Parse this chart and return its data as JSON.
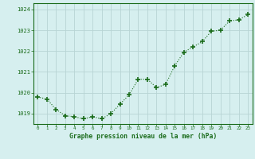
{
  "x": [
    0,
    1,
    2,
    3,
    4,
    5,
    6,
    7,
    8,
    9,
    10,
    11,
    12,
    13,
    14,
    15,
    16,
    17,
    18,
    19,
    20,
    21,
    22,
    23
  ],
  "y": [
    1019.8,
    1019.7,
    1019.2,
    1018.9,
    1018.85,
    1018.75,
    1018.85,
    1018.75,
    1019.0,
    1019.45,
    1019.9,
    1020.65,
    1020.65,
    1020.25,
    1020.4,
    1021.3,
    1021.95,
    1022.2,
    1022.45,
    1022.95,
    1023.0,
    1023.45,
    1023.5,
    1023.75
  ],
  "line_color": "#1a6b1a",
  "marker_color": "#1a6b1a",
  "bg_color": "#d6efef",
  "grid_color": "#b8d4d4",
  "xlabel": "Graphe pression niveau de la mer (hPa)",
  "xlabel_color": "#1a6b1a",
  "tick_color": "#1a6b1a",
  "ylim": [
    1018.5,
    1024.3
  ],
  "yticks": [
    1019,
    1020,
    1021,
    1022,
    1023,
    1024
  ],
  "xticks": [
    0,
    1,
    2,
    3,
    4,
    5,
    6,
    7,
    8,
    9,
    10,
    11,
    12,
    13,
    14,
    15,
    16,
    17,
    18,
    19,
    20,
    21,
    22,
    23
  ],
  "border_color": "#1a6b1a"
}
